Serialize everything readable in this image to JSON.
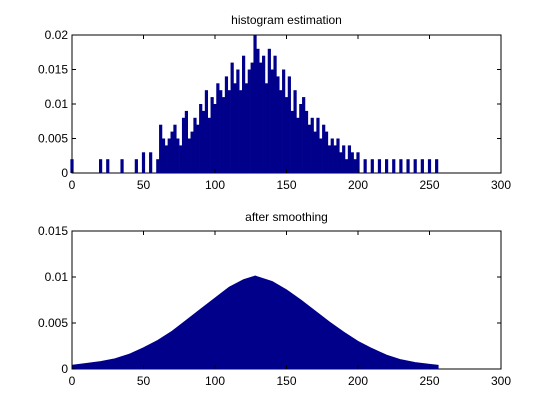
{
  "chart_data": [
    {
      "type": "bar",
      "title": "histogram estimation",
      "xlabel": "",
      "ylabel": "",
      "xlim": [
        0,
        300
      ],
      "ylim": [
        0,
        0.02
      ],
      "xticks": [
        "0",
        "50",
        "100",
        "150",
        "200",
        "250",
        "300"
      ],
      "yticks": [
        "0",
        "0.005",
        "0.01",
        "0.015",
        "0.02"
      ],
      "grid": false,
      "color": "#00008b",
      "x": [
        0,
        20,
        25,
        35,
        45,
        50,
        55,
        60,
        62,
        64,
        66,
        68,
        70,
        72,
        74,
        76,
        78,
        80,
        82,
        84,
        86,
        88,
        90,
        92,
        94,
        96,
        98,
        100,
        102,
        104,
        106,
        108,
        110,
        112,
        114,
        116,
        118,
        120,
        122,
        124,
        126,
        128,
        130,
        132,
        134,
        136,
        138,
        140,
        142,
        144,
        146,
        148,
        150,
        152,
        154,
        156,
        158,
        160,
        162,
        164,
        166,
        168,
        170,
        172,
        174,
        176,
        178,
        180,
        182,
        184,
        186,
        188,
        190,
        192,
        194,
        196,
        198,
        200,
        205,
        210,
        215,
        220,
        225,
        230,
        235,
        240,
        245,
        250,
        255
      ],
      "values": [
        0.002,
        0.002,
        0.002,
        0.002,
        0.002,
        0.003,
        0.003,
        0.002,
        0.007,
        0.005,
        0.004,
        0.005,
        0.006,
        0.007,
        0.005,
        0.004,
        0.008,
        0.009,
        0.005,
        0.006,
        0.008,
        0.007,
        0.01,
        0.009,
        0.012,
        0.008,
        0.011,
        0.01,
        0.013,
        0.012,
        0.011,
        0.014,
        0.012,
        0.016,
        0.013,
        0.015,
        0.012,
        0.017,
        0.013,
        0.015,
        0.016,
        0.02,
        0.018,
        0.016,
        0.017,
        0.013,
        0.018,
        0.015,
        0.017,
        0.014,
        0.012,
        0.015,
        0.011,
        0.014,
        0.009,
        0.012,
        0.008,
        0.01,
        0.011,
        0.009,
        0.007,
        0.008,
        0.006,
        0.008,
        0.005,
        0.007,
        0.006,
        0.004,
        0.005,
        0.004,
        0.005,
        0.003,
        0.004,
        0.002,
        0.004,
        0.003,
        0.002,
        0.003,
        0.002,
        0.002,
        0.002,
        0.002,
        0.002,
        0.002,
        0.002,
        0.002,
        0.002,
        0.002,
        0.002
      ]
    },
    {
      "type": "area",
      "title": "after smoothing",
      "xlabel": "",
      "ylabel": "",
      "xlim": [
        0,
        300
      ],
      "ylim": [
        0,
        0.015
      ],
      "xticks": [
        "0",
        "50",
        "100",
        "150",
        "200",
        "250",
        "300"
      ],
      "yticks": [
        "0",
        "0.005",
        "0.01",
        "0.015"
      ],
      "grid": false,
      "color": "#00008b",
      "x": [
        0,
        10,
        20,
        30,
        40,
        50,
        60,
        70,
        80,
        90,
        100,
        110,
        120,
        128,
        130,
        140,
        150,
        160,
        170,
        180,
        190,
        200,
        210,
        220,
        230,
        240,
        250,
        256
      ],
      "values": [
        0.0004,
        0.0006,
        0.0008,
        0.0011,
        0.0016,
        0.0023,
        0.0031,
        0.0041,
        0.0053,
        0.0065,
        0.0077,
        0.0089,
        0.0097,
        0.0101,
        0.01,
        0.0095,
        0.0086,
        0.0075,
        0.0063,
        0.0051,
        0.004,
        0.003,
        0.0022,
        0.0015,
        0.001,
        0.0007,
        0.0005,
        0.0004
      ]
    }
  ]
}
